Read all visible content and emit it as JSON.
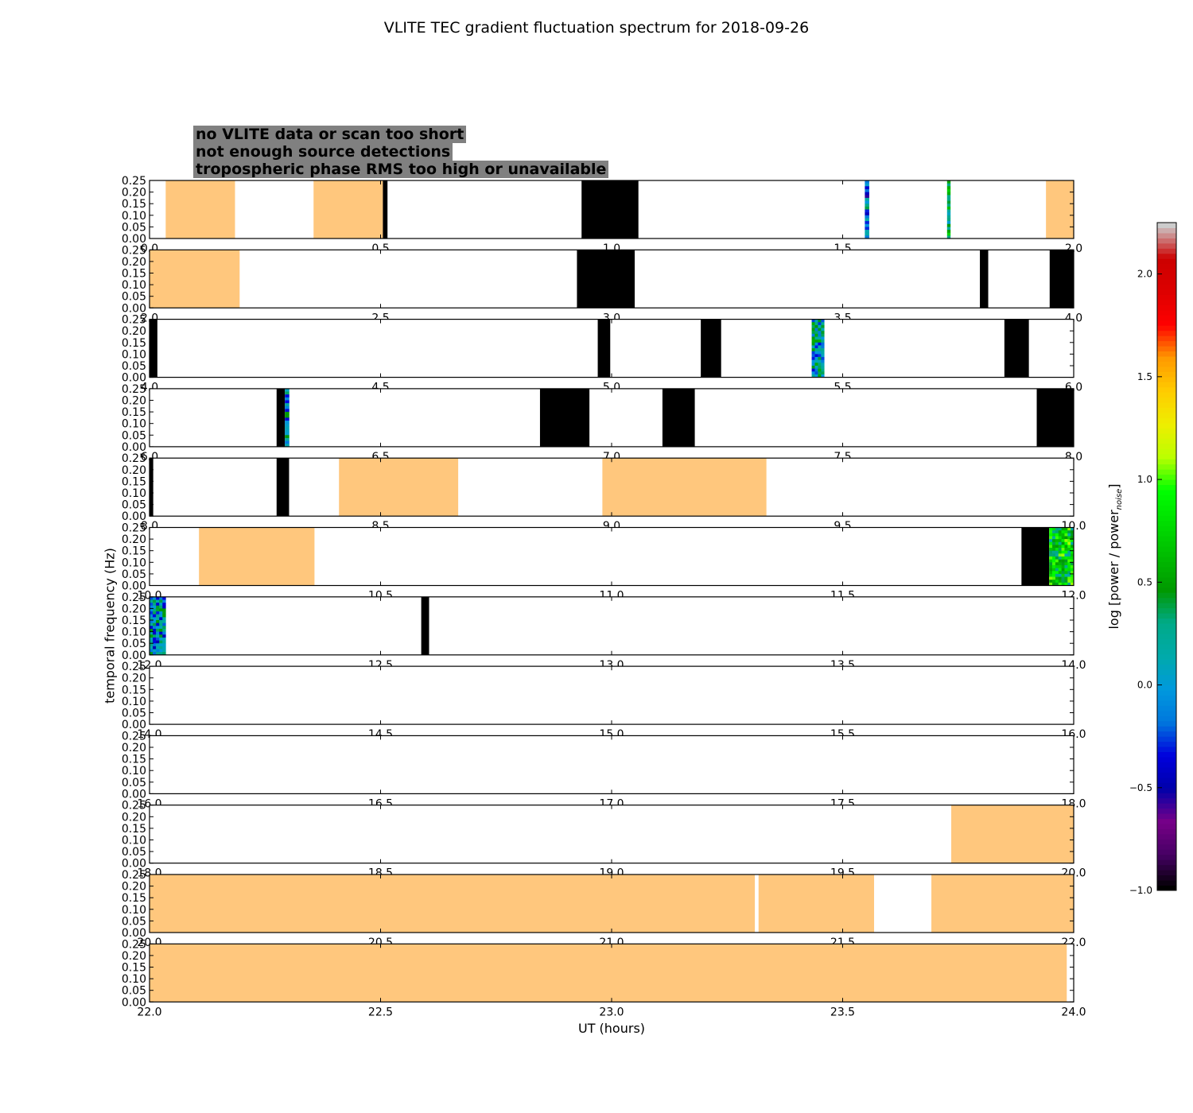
{
  "chart_data": {
    "type": "heatmap",
    "title": "VLITE TEC gradient fluctuation spectrum for 2018-09-26",
    "xlabel": "UT (hours)",
    "ylabel": "temporal frequency (Hz)",
    "colorbar": {
      "label_main": "log [power / power",
      "label_sub": "noise",
      "label_end": "]",
      "range": [
        -1.0,
        2.25
      ],
      "ticks": [
        "−1.0",
        "−0.5",
        "0.0",
        "0.5",
        "1.0",
        "1.5",
        "2.0"
      ],
      "tick_values": [
        -1.0,
        -0.5,
        0.0,
        0.5,
        1.0,
        1.5,
        2.0
      ],
      "colormap": "nipy_spectral"
    },
    "legend": [
      {
        "text": "no VLITE data or scan too short",
        "color": "#ffffff"
      },
      {
        "text": "not enough source detections",
        "color": "#000000"
      },
      {
        "text": "tropospheric phase RMS too high or unavailable",
        "color": "#ffc77d"
      }
    ],
    "ylim": [
      0.0,
      0.25
    ],
    "y_ticks": [
      "0.00",
      "0.05",
      "0.10",
      "0.15",
      "0.20",
      "0.25"
    ],
    "y_tick_values": [
      0.0,
      0.05,
      0.1,
      0.15,
      0.2,
      0.25
    ],
    "panels": [
      {
        "xlim": [
          0,
          2
        ],
        "x_ticks": [
          "0.0",
          "0.5",
          "1.0",
          "1.5",
          "2.0"
        ],
        "segments": [
          {
            "start": 0.035,
            "end": 0.185,
            "cat": "tropo"
          },
          {
            "start": 0.355,
            "end": 0.505,
            "cat": "tropo"
          },
          {
            "start": 0.505,
            "end": 0.515,
            "cat": "nodet"
          },
          {
            "start": 0.935,
            "end": 1.058,
            "cat": "nodet"
          },
          {
            "start": 1.548,
            "end": 1.557,
            "cat": "spec",
            "level": -0.1
          },
          {
            "start": 1.726,
            "end": 1.733,
            "cat": "spec",
            "level": 0.3
          },
          {
            "start": 1.94,
            "end": 2.0,
            "cat": "tropo"
          }
        ]
      },
      {
        "xlim": [
          2,
          4
        ],
        "x_ticks": [
          "2.0",
          "2.5",
          "3.0",
          "3.5",
          "4.0"
        ],
        "segments": [
          {
            "start": 2.0,
            "end": 2.195,
            "cat": "tropo"
          },
          {
            "start": 2.925,
            "end": 3.05,
            "cat": "nodet"
          },
          {
            "start": 3.797,
            "end": 3.815,
            "cat": "nodet"
          },
          {
            "start": 3.948,
            "end": 4.0,
            "cat": "nodet"
          }
        ]
      },
      {
        "xlim": [
          4,
          6
        ],
        "x_ticks": [
          "4.0",
          "4.5",
          "5.0",
          "5.5",
          "6.0"
        ],
        "segments": [
          {
            "start": 4.0,
            "end": 4.017,
            "cat": "nodet"
          },
          {
            "start": 4.97,
            "end": 4.997,
            "cat": "nodet"
          },
          {
            "start": 5.193,
            "end": 5.237,
            "cat": "nodet"
          },
          {
            "start": 5.433,
            "end": 5.46,
            "cat": "spec",
            "level": 0.1
          },
          {
            "start": 5.85,
            "end": 5.903,
            "cat": "nodet"
          }
        ]
      },
      {
        "xlim": [
          6,
          8
        ],
        "x_ticks": [
          "6.0",
          "6.5",
          "7.0",
          "7.5",
          "8.0"
        ],
        "segments": [
          {
            "start": 6.275,
            "end": 6.293,
            "cat": "nodet"
          },
          {
            "start": 6.293,
            "end": 6.302,
            "cat": "spec",
            "level": 0.0
          },
          {
            "start": 6.845,
            "end": 6.952,
            "cat": "nodet"
          },
          {
            "start": 7.11,
            "end": 7.18,
            "cat": "nodet"
          },
          {
            "start": 7.92,
            "end": 8.0,
            "cat": "nodet"
          }
        ]
      },
      {
        "xlim": [
          8,
          10
        ],
        "x_ticks": [
          "8.0",
          "8.5",
          "9.0",
          "9.5",
          "10.0"
        ],
        "segments": [
          {
            "start": 8.0,
            "end": 8.008,
            "cat": "nodet"
          },
          {
            "start": 8.275,
            "end": 8.302,
            "cat": "nodet"
          },
          {
            "start": 8.41,
            "end": 8.668,
            "cat": "tropo"
          },
          {
            "start": 8.98,
            "end": 9.335,
            "cat": "tropo"
          }
        ]
      },
      {
        "xlim": [
          10,
          12
        ],
        "x_ticks": [
          "10.0",
          "10.5",
          "11.0",
          "11.5",
          "12.0"
        ],
        "segments": [
          {
            "start": 10.107,
            "end": 10.357,
            "cat": "tropo"
          },
          {
            "start": 11.887,
            "end": 11.947,
            "cat": "nodet"
          },
          {
            "start": 11.947,
            "end": 12.0,
            "cat": "spec",
            "level": 0.6
          }
        ]
      },
      {
        "xlim": [
          12,
          14
        ],
        "x_ticks": [
          "12.0",
          "12.5",
          "13.0",
          "13.5",
          "14.0"
        ],
        "segments": [
          {
            "start": 12.0,
            "end": 12.035,
            "cat": "spec",
            "level": 0.0
          },
          {
            "start": 12.588,
            "end": 12.605,
            "cat": "nodet"
          }
        ]
      },
      {
        "xlim": [
          14,
          16
        ],
        "x_ticks": [
          "14.0",
          "14.5",
          "15.0",
          "15.5",
          "16.0"
        ],
        "segments": []
      },
      {
        "xlim": [
          16,
          18
        ],
        "x_ticks": [
          "16.0",
          "16.5",
          "17.0",
          "17.5",
          "18.0"
        ],
        "segments": []
      },
      {
        "xlim": [
          18,
          20
        ],
        "x_ticks": [
          "18.0",
          "18.5",
          "19.0",
          "19.5",
          "20.0"
        ],
        "segments": [
          {
            "start": 19.735,
            "end": 20.0,
            "cat": "tropo"
          }
        ]
      },
      {
        "xlim": [
          20,
          22
        ],
        "x_ticks": [
          "20.0",
          "20.5",
          "21.0",
          "21.5",
          "22.0"
        ],
        "segments": [
          {
            "start": 20.0,
            "end": 21.31,
            "cat": "tropo"
          },
          {
            "start": 21.318,
            "end": 21.568,
            "cat": "tropo"
          },
          {
            "start": 21.692,
            "end": 22.0,
            "cat": "tropo"
          }
        ]
      },
      {
        "xlim": [
          22,
          24
        ],
        "x_ticks": [
          "22.0",
          "22.5",
          "23.0",
          "23.5",
          "24.0"
        ],
        "segments": [
          {
            "start": 22.0,
            "end": 23.985,
            "cat": "tropo"
          }
        ]
      }
    ]
  }
}
